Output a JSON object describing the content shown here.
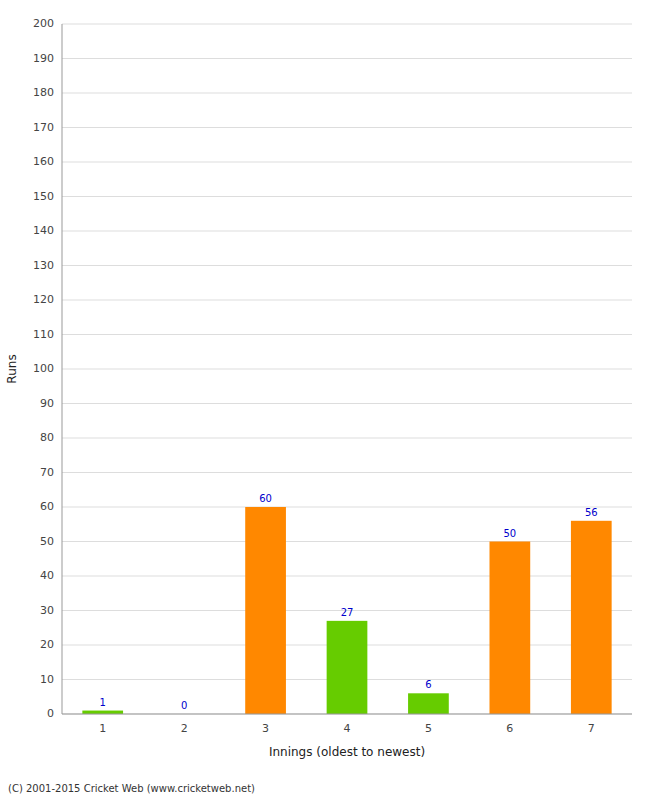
{
  "chart_data": {
    "type": "bar",
    "categories": [
      "1",
      "2",
      "3",
      "4",
      "5",
      "6",
      "7"
    ],
    "values": [
      1,
      0,
      60,
      27,
      6,
      50,
      56
    ],
    "colors": [
      "#66cc00",
      "#66cc00",
      "#ff8800",
      "#66cc00",
      "#66cc00",
      "#ff8800",
      "#ff8800"
    ],
    "xlabel": "Innings (oldest to newest)",
    "ylabel": "Runs",
    "ylim": [
      0,
      200
    ],
    "yticks": [
      0,
      10,
      20,
      30,
      40,
      50,
      60,
      70,
      80,
      90,
      100,
      110,
      120,
      130,
      140,
      150,
      160,
      170,
      180,
      190,
      200
    ],
    "grid": true,
    "data_labels": true,
    "footer": "(C) 2001-2015 Cricket Web (www.cricketweb.net)"
  }
}
